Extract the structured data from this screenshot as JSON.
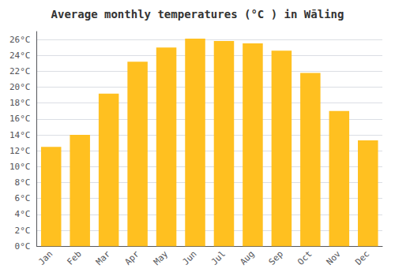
{
  "chart_data": {
    "type": "bar",
    "title": "Average monthly temperatures (°C ) in Wāling",
    "categories": [
      "Jan",
      "Feb",
      "Mar",
      "Apr",
      "May",
      "Jun",
      "Jul",
      "Aug",
      "Sep",
      "Oct",
      "Nov",
      "Dec"
    ],
    "values": [
      12.5,
      14.0,
      19.2,
      23.2,
      25.0,
      26.1,
      25.8,
      25.5,
      24.6,
      21.8,
      17.0,
      13.3
    ],
    "color": "#FFC020",
    "ylim": [
      0,
      27
    ],
    "yticks": [
      {
        "value": 0,
        "label": "0°C"
      },
      {
        "value": 2,
        "label": "2°C"
      },
      {
        "value": 4,
        "label": "4°C"
      },
      {
        "value": 6,
        "label": "6°C"
      },
      {
        "value": 8,
        "label": "8°C"
      },
      {
        "value": 10,
        "label": "10°C"
      },
      {
        "value": 12,
        "label": "12°C"
      },
      {
        "value": 14,
        "label": "14°C"
      },
      {
        "value": 16,
        "label": "16°C"
      },
      {
        "value": 18,
        "label": "18°C"
      },
      {
        "value": 20,
        "label": "20°C"
      },
      {
        "value": 22,
        "label": "22°C"
      },
      {
        "value": 24,
        "label": "24°C"
      },
      {
        "value": 26,
        "label": "26°C"
      }
    ],
    "grid": true
  }
}
